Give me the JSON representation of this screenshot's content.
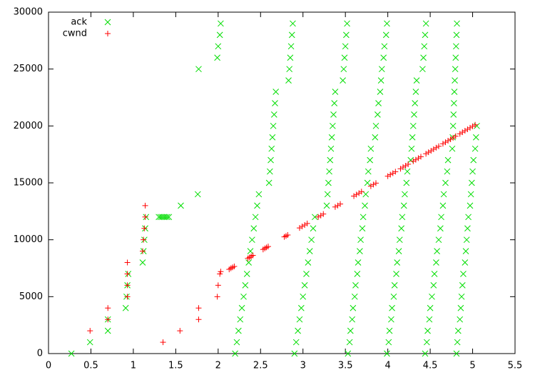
{
  "chart_data": {
    "type": "scatter",
    "xlim": [
      0,
      5.5
    ],
    "xticks": [
      0,
      0.5,
      1,
      1.5,
      2,
      2.5,
      3,
      3.5,
      4,
      4.5,
      5,
      5.5
    ],
    "ylim": [
      0,
      30000
    ],
    "yticks": [
      0,
      5000,
      10000,
      15000,
      20000,
      25000,
      30000
    ],
    "legend": "top-left",
    "series": [
      {
        "name": "ack",
        "color": "#00dd00",
        "marker": "x",
        "x": [
          0.27,
          0.49,
          0.7,
          0.7,
          0.91,
          0.92,
          0.93,
          0.94,
          1.11,
          1.12,
          1.13,
          1.14,
          1.15,
          1.3,
          1.32,
          1.34,
          1.36,
          1.38,
          1.4,
          1.42,
          1.56,
          1.76,
          1.77,
          1.99,
          2.0,
          2.02,
          2.03,
          2.2,
          2.22,
          2.24,
          2.26,
          2.28,
          2.3,
          2.32,
          2.34,
          2.36,
          2.38,
          2.4,
          2.42,
          2.44,
          2.46,
          2.48,
          2.6,
          2.61,
          2.62,
          2.63,
          2.64,
          2.65,
          2.66,
          2.67,
          2.68,
          2.83,
          2.84,
          2.85,
          2.86,
          2.87,
          2.88,
          2.9,
          2.92,
          2.94,
          2.96,
          2.98,
          3.0,
          3.02,
          3.04,
          3.06,
          3.08,
          3.1,
          3.12,
          3.14,
          3.28,
          3.29,
          3.3,
          3.31,
          3.32,
          3.33,
          3.34,
          3.35,
          3.36,
          3.37,
          3.38,
          3.47,
          3.48,
          3.49,
          3.5,
          3.51,
          3.52,
          3.53,
          3.55,
          3.56,
          3.58,
          3.59,
          3.61,
          3.62,
          3.64,
          3.65,
          3.67,
          3.68,
          3.7,
          3.71,
          3.73,
          3.74,
          3.76,
          3.77,
          3.79,
          3.8,
          3.85,
          3.86,
          3.88,
          3.89,
          3.91,
          3.92,
          3.93,
          3.95,
          3.96,
          3.98,
          3.99,
          3.99,
          4.01,
          4.02,
          4.04,
          4.05,
          4.07,
          4.08,
          4.1,
          4.11,
          4.13,
          4.14,
          4.16,
          4.17,
          4.19,
          4.2,
          4.22,
          4.23,
          4.27,
          4.28,
          4.29,
          4.3,
          4.31,
          4.32,
          4.33,
          4.34,
          4.41,
          4.42,
          4.43,
          4.44,
          4.45,
          4.44,
          4.46,
          4.47,
          4.49,
          4.5,
          4.52,
          4.54,
          4.55,
          4.57,
          4.58,
          4.6,
          4.62,
          4.63,
          4.65,
          4.66,
          4.68,
          4.7,
          4.71,
          4.76,
          4.765,
          4.77,
          4.775,
          4.78,
          4.785,
          4.79,
          4.795,
          4.8,
          4.805,
          4.81,
          4.815,
          4.81,
          4.82,
          4.83,
          4.85,
          4.86,
          4.87,
          4.88,
          4.89,
          4.91,
          4.92,
          4.93,
          4.94,
          4.95,
          4.97,
          4.98,
          4.99,
          5.0,
          5.01,
          5.03,
          5.04,
          5.05
        ],
        "values": [
          0,
          1000,
          2000,
          3000,
          4000,
          5000,
          6000,
          7000,
          8000,
          9000,
          10000,
          11000,
          12000,
          12000,
          12000,
          12000,
          12000,
          12000,
          12000,
          12000,
          13000,
          14000,
          25000,
          26000,
          27000,
          28000,
          29000,
          0,
          1000,
          2000,
          3000,
          4000,
          5000,
          6000,
          7000,
          8000,
          9000,
          10000,
          11000,
          12000,
          13000,
          14000,
          15000,
          16000,
          17000,
          18000,
          19000,
          20000,
          21000,
          22000,
          23000,
          24000,
          25000,
          26000,
          27000,
          28000,
          29000,
          0,
          1000,
          2000,
          3000,
          4000,
          5000,
          6000,
          7000,
          8000,
          9000,
          10000,
          11000,
          12000,
          13000,
          14000,
          15000,
          16000,
          17000,
          18000,
          19000,
          20000,
          21000,
          22000,
          23000,
          24000,
          25000,
          26000,
          27000,
          28000,
          29000,
          0,
          1000,
          2000,
          3000,
          4000,
          5000,
          6000,
          7000,
          8000,
          9000,
          10000,
          11000,
          12000,
          13000,
          14000,
          15000,
          16000,
          17000,
          18000,
          19000,
          20000,
          21000,
          22000,
          23000,
          24000,
          25000,
          26000,
          27000,
          28000,
          29000,
          0,
          1000,
          2000,
          3000,
          4000,
          5000,
          6000,
          7000,
          8000,
          9000,
          10000,
          11000,
          12000,
          13000,
          14000,
          15000,
          16000,
          17000,
          18000,
          19000,
          20000,
          21000,
          22000,
          23000,
          24000,
          25000,
          26000,
          27000,
          28000,
          29000,
          0,
          1000,
          2000,
          3000,
          4000,
          5000,
          6000,
          7000,
          8000,
          9000,
          10000,
          11000,
          12000,
          13000,
          14000,
          15000,
          16000,
          17000,
          18000,
          19000,
          20000,
          21000,
          22000,
          23000,
          24000,
          25000,
          26000,
          27000,
          28000,
          29000,
          0,
          1000,
          2000,
          3000,
          4000,
          5000,
          6000,
          7000,
          8000,
          9000,
          10000,
          11000,
          12000,
          13000,
          14000,
          15000,
          16000,
          17000,
          18000,
          19000,
          20000
        ]
      },
      {
        "name": "cwnd",
        "color": "#ff0000",
        "marker": "+",
        "x": [
          0.49,
          0.7,
          0.7,
          0.93,
          0.93,
          0.93,
          0.93,
          1.14,
          1.14,
          1.13,
          1.12,
          1.11,
          1.35,
          1.55,
          1.77,
          1.77,
          1.99,
          2.0,
          2.02,
          2.03,
          2.13,
          2.15,
          2.17,
          2.19,
          2.35,
          2.37,
          2.39,
          2.41,
          2.53,
          2.55,
          2.57,
          2.59,
          2.78,
          2.8,
          2.82,
          2.96,
          2.99,
          3.02,
          3.05,
          3.18,
          3.21,
          3.24,
          3.38,
          3.41,
          3.44,
          3.6,
          3.63,
          3.66,
          3.69,
          3.8,
          3.83,
          3.86,
          4.0,
          4.03,
          4.06,
          4.09,
          4.15,
          4.18,
          4.21,
          4.24,
          4.3,
          4.33,
          4.36,
          4.39,
          4.45,
          4.48,
          4.51,
          4.54,
          4.57,
          4.6,
          4.65,
          4.68,
          4.71,
          4.74,
          4.77,
          4.8,
          4.85,
          4.88,
          4.91,
          4.94,
          4.97,
          5.0,
          5.03
        ],
        "values": [
          2000,
          3000,
          4000,
          5000,
          6000,
          7000,
          8000,
          13000,
          12000,
          11000,
          10000,
          9000,
          1000,
          2000,
          3000,
          4000,
          5000,
          6000,
          7000,
          7200,
          7400,
          7490,
          7580,
          7660,
          8360,
          8450,
          8540,
          8630,
          9150,
          9240,
          9330,
          9410,
          10250,
          10330,
          10420,
          11040,
          11170,
          11300,
          11430,
          12000,
          12130,
          12260,
          12880,
          13010,
          13140,
          13840,
          13970,
          14100,
          14230,
          14710,
          14850,
          14980,
          15590,
          15720,
          15850,
          15980,
          16240,
          16380,
          16510,
          16640,
          16900,
          17030,
          17170,
          17300,
          17560,
          17690,
          17820,
          17960,
          18090,
          18220,
          18440,
          18570,
          18700,
          18830,
          18960,
          19100,
          19310,
          19450,
          19580,
          19710,
          19840,
          19970,
          20100
        ]
      }
    ]
  }
}
